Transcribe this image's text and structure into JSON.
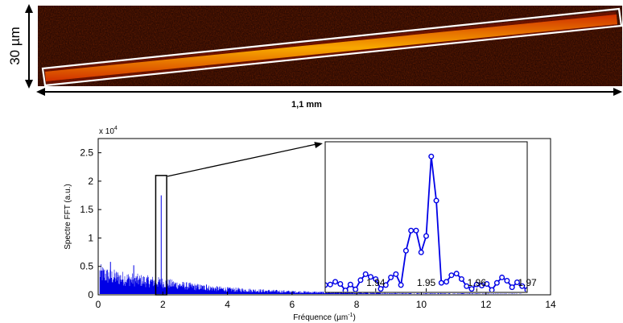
{
  "micrograph": {
    "height_label": "30 µm",
    "length_label": "1,1 mm"
  },
  "colors": {
    "series": "#0000e6",
    "frame": "#000000",
    "micrograph_bg": "#1a0402",
    "fiber_core": "#f5a000",
    "fiber_edge": "#c02800",
    "outline": "#ffffff"
  },
  "chart_data": [
    {
      "type": "line",
      "title": "",
      "xlabel": "Fréquence (µm",
      "xlabel_superscript": "-1",
      "xlabel_close": ")",
      "ylabel": "Spectre FFT (a.u.)",
      "y_multiplier": "x 10",
      "y_multiplier_exponent": "4",
      "xlim": [
        0,
        14
      ],
      "ylim": [
        0,
        27500
      ],
      "x_ticks": [
        "0",
        "2",
        "4",
        "6",
        "8",
        "10",
        "12",
        "14"
      ],
      "y_ticks": [
        "0",
        "0.5",
        "1",
        "1.5",
        "2",
        "2.5"
      ],
      "grid": false,
      "highlight_box": {
        "x_range": [
          1.78,
          2.12
        ],
        "y_range": [
          0,
          21000
        ]
      },
      "series": [
        {
          "envelope_x": [
            0.05,
            0.3,
            0.6,
            1.0,
            1.5,
            2.0,
            2.5,
            3.0,
            3.5,
            4.0,
            5.0,
            6.0,
            7.0,
            8.0,
            9.0,
            10.0,
            11.0,
            12.0,
            13.0,
            13.2
          ],
          "envelope_y": [
            3800,
            3300,
            3000,
            2700,
            2400,
            2100,
            1700,
            1400,
            1150,
            950,
            700,
            520,
            390,
            300,
            250,
            220,
            200,
            180,
            160,
            150
          ],
          "spikes_x": [
            0.38,
            1.95,
            1.1,
            3.35
          ],
          "spikes_y": [
            5800,
            17500,
            5200,
            1800
          ]
        }
      ]
    },
    {
      "type": "line",
      "title": "",
      "xlim": [
        1.93,
        1.97
      ],
      "ylim": [
        0,
        27500
      ],
      "x_ticks": [
        "1.94",
        "1.95",
        "1.96",
        "1.97"
      ],
      "series": [
        {
          "x": [
            1.93,
            1.931,
            1.932,
            1.933,
            1.934,
            1.935,
            1.936,
            1.937,
            1.938,
            1.939,
            1.94,
            1.941,
            1.942,
            1.943,
            1.944,
            1.945,
            1.946,
            1.947,
            1.948,
            1.949,
            1.95,
            1.951,
            1.952,
            1.953,
            1.954,
            1.955,
            1.956,
            1.957,
            1.958,
            1.959,
            1.96,
            1.961,
            1.962,
            1.963,
            1.964,
            1.965,
            1.966,
            1.967,
            1.968,
            1.969,
            1.97
          ],
          "y": [
            1200,
            1300,
            1800,
            1400,
            200,
            1300,
            400,
            2100,
            3200,
            2700,
            2300,
            500,
            1200,
            2600,
            3200,
            1200,
            7500,
            11200,
            11200,
            7200,
            10200,
            24800,
            16700,
            1600,
            1800,
            3000,
            3300,
            2300,
            1000,
            500,
            1300,
            1100,
            1400,
            300,
            1600,
            2600,
            2000,
            800,
            1700,
            1000,
            300
          ]
        }
      ]
    }
  ]
}
